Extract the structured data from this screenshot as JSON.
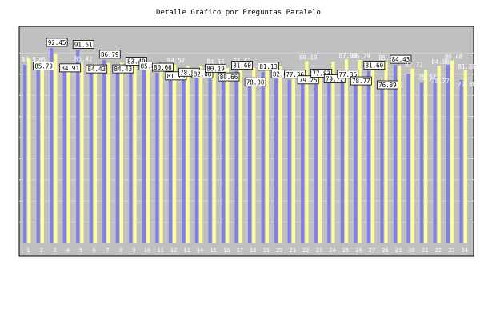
{
  "chart_data": {
    "type": "bar",
    "title": "Detalle Gráfico por Preguntas Paralelo",
    "xlabel": "",
    "ylabel": "",
    "ylim": [
      0,
      100
    ],
    "yticks": [
      10,
      20,
      30,
      40,
      50,
      60,
      70,
      80,
      90
    ],
    "grid": true,
    "legend": "none",
    "categories": [
      "1",
      "2",
      "3",
      "4",
      "5",
      "6",
      "7",
      "8",
      "9",
      "10",
      "11",
      "12",
      "13",
      "14",
      "15",
      "16",
      "17",
      "18",
      "19",
      "20",
      "21",
      "22",
      "23",
      "24",
      "25",
      "26",
      "27",
      "28",
      "29",
      "30",
      "31",
      "32",
      "33",
      "34"
    ],
    "series": [
      {
        "color": "#8080e6",
        "values": [
          84.51,
          85.79,
          92.45,
          84.91,
          91.51,
          84.43,
          86.79,
          84.43,
          83.49,
          85.85,
          80.66,
          81.13,
          78.3,
          82.08,
          80.19,
          80.66,
          81.6,
          78.3,
          81.13,
          82.08,
          77.36,
          79.25,
          77.83,
          79.72,
          77.36,
          78.77,
          81.6,
          76.89,
          84.43,
          80.19,
          75.94,
          78.77,
          84.43,
          77.36
        ],
        "labels": [
          "84.51",
          "85.79",
          "92.45",
          "84.91",
          "91.51",
          "84.43",
          "86.79",
          "84.43",
          "83.49",
          "85.85",
          "80.66",
          "81.13",
          "78.30",
          "82.08",
          "80.19",
          "80.66",
          "81.60",
          "78.30",
          "81.13",
          "82.08",
          "77.36",
          "79.25",
          "77.83",
          "79.72",
          "77.36",
          "78.77",
          "81.60",
          "76.89",
          "84.43",
          "",
          "75.94",
          "78.77",
          "",
          "77.36"
        ],
        "boxed": [
          false,
          true,
          true,
          true,
          true,
          true,
          true,
          true,
          true,
          true,
          true,
          true,
          true,
          true,
          true,
          true,
          true,
          true,
          true,
          true,
          true,
          true,
          true,
          true,
          true,
          true,
          true,
          true,
          true,
          false,
          false,
          false,
          false,
          false
        ]
      },
      {
        "color": "#ffff99",
        "values": [
          87.74,
          85.0,
          89.62,
          84.0,
          85.42,
          85.0,
          85.38,
          85.42,
          84.0,
          84.0,
          82.0,
          84.57,
          84.0,
          84.0,
          84.16,
          83.0,
          84.52,
          83.0,
          83.0,
          84.0,
          80.0,
          86.19,
          80.0,
          86.0,
          87.08,
          86.79,
          84.0,
          85.97,
          84.0,
          82.72,
          82.0,
          84.0,
          86.48,
          81.88
        ],
        "labels": [
          "",
          "85.",
          "",
          "",
          "85.42",
          "",
          "",
          "",
          "",
          "",
          "",
          "84.57",
          "",
          "",
          "84.16",
          "",
          "84.52",
          "",
          "",
          "",
          "",
          "86.19",
          "",
          "",
          "87.08",
          "86.79",
          "",
          "85.97",
          "",
          "82.72",
          "",
          "84.00",
          "86.48",
          "81.88"
        ]
      }
    ]
  }
}
